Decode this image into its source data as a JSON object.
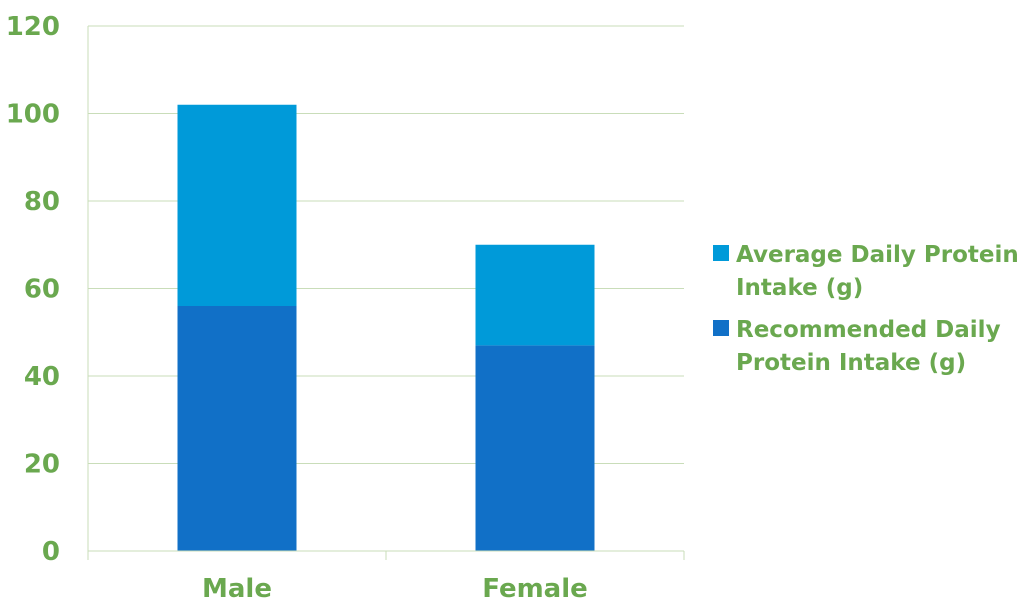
{
  "chart_data": {
    "type": "bar",
    "stacked": true,
    "categories": [
      "Male",
      "Female"
    ],
    "series": [
      {
        "name": "Recommended Daily Protein Intake (g)",
        "values": [
          56,
          47
        ],
        "color": "#1170c7"
      },
      {
        "name": "Average Daily Protein Intake (g)",
        "values": [
          46,
          23
        ],
        "color": "#009ad9"
      }
    ],
    "yticks": [
      "0",
      "20",
      "40",
      "60",
      "80",
      "100",
      "120"
    ],
    "ylim": [
      0,
      120
    ],
    "grid": true,
    "legend_position": "right",
    "legend": [
      {
        "lines": [
          "Average Daily Protein",
          "Intake (g)"
        ],
        "color": "#009ad9"
      },
      {
        "lines": [
          "Recommended Daily",
          "Protein Intake (g)"
        ],
        "color": "#1170c7"
      }
    ],
    "title": "",
    "xlabel": "",
    "ylabel": ""
  },
  "colors": {
    "text": "#6aa84f",
    "grid": "#c9ddb9",
    "axis": "#c9ddb9"
  }
}
